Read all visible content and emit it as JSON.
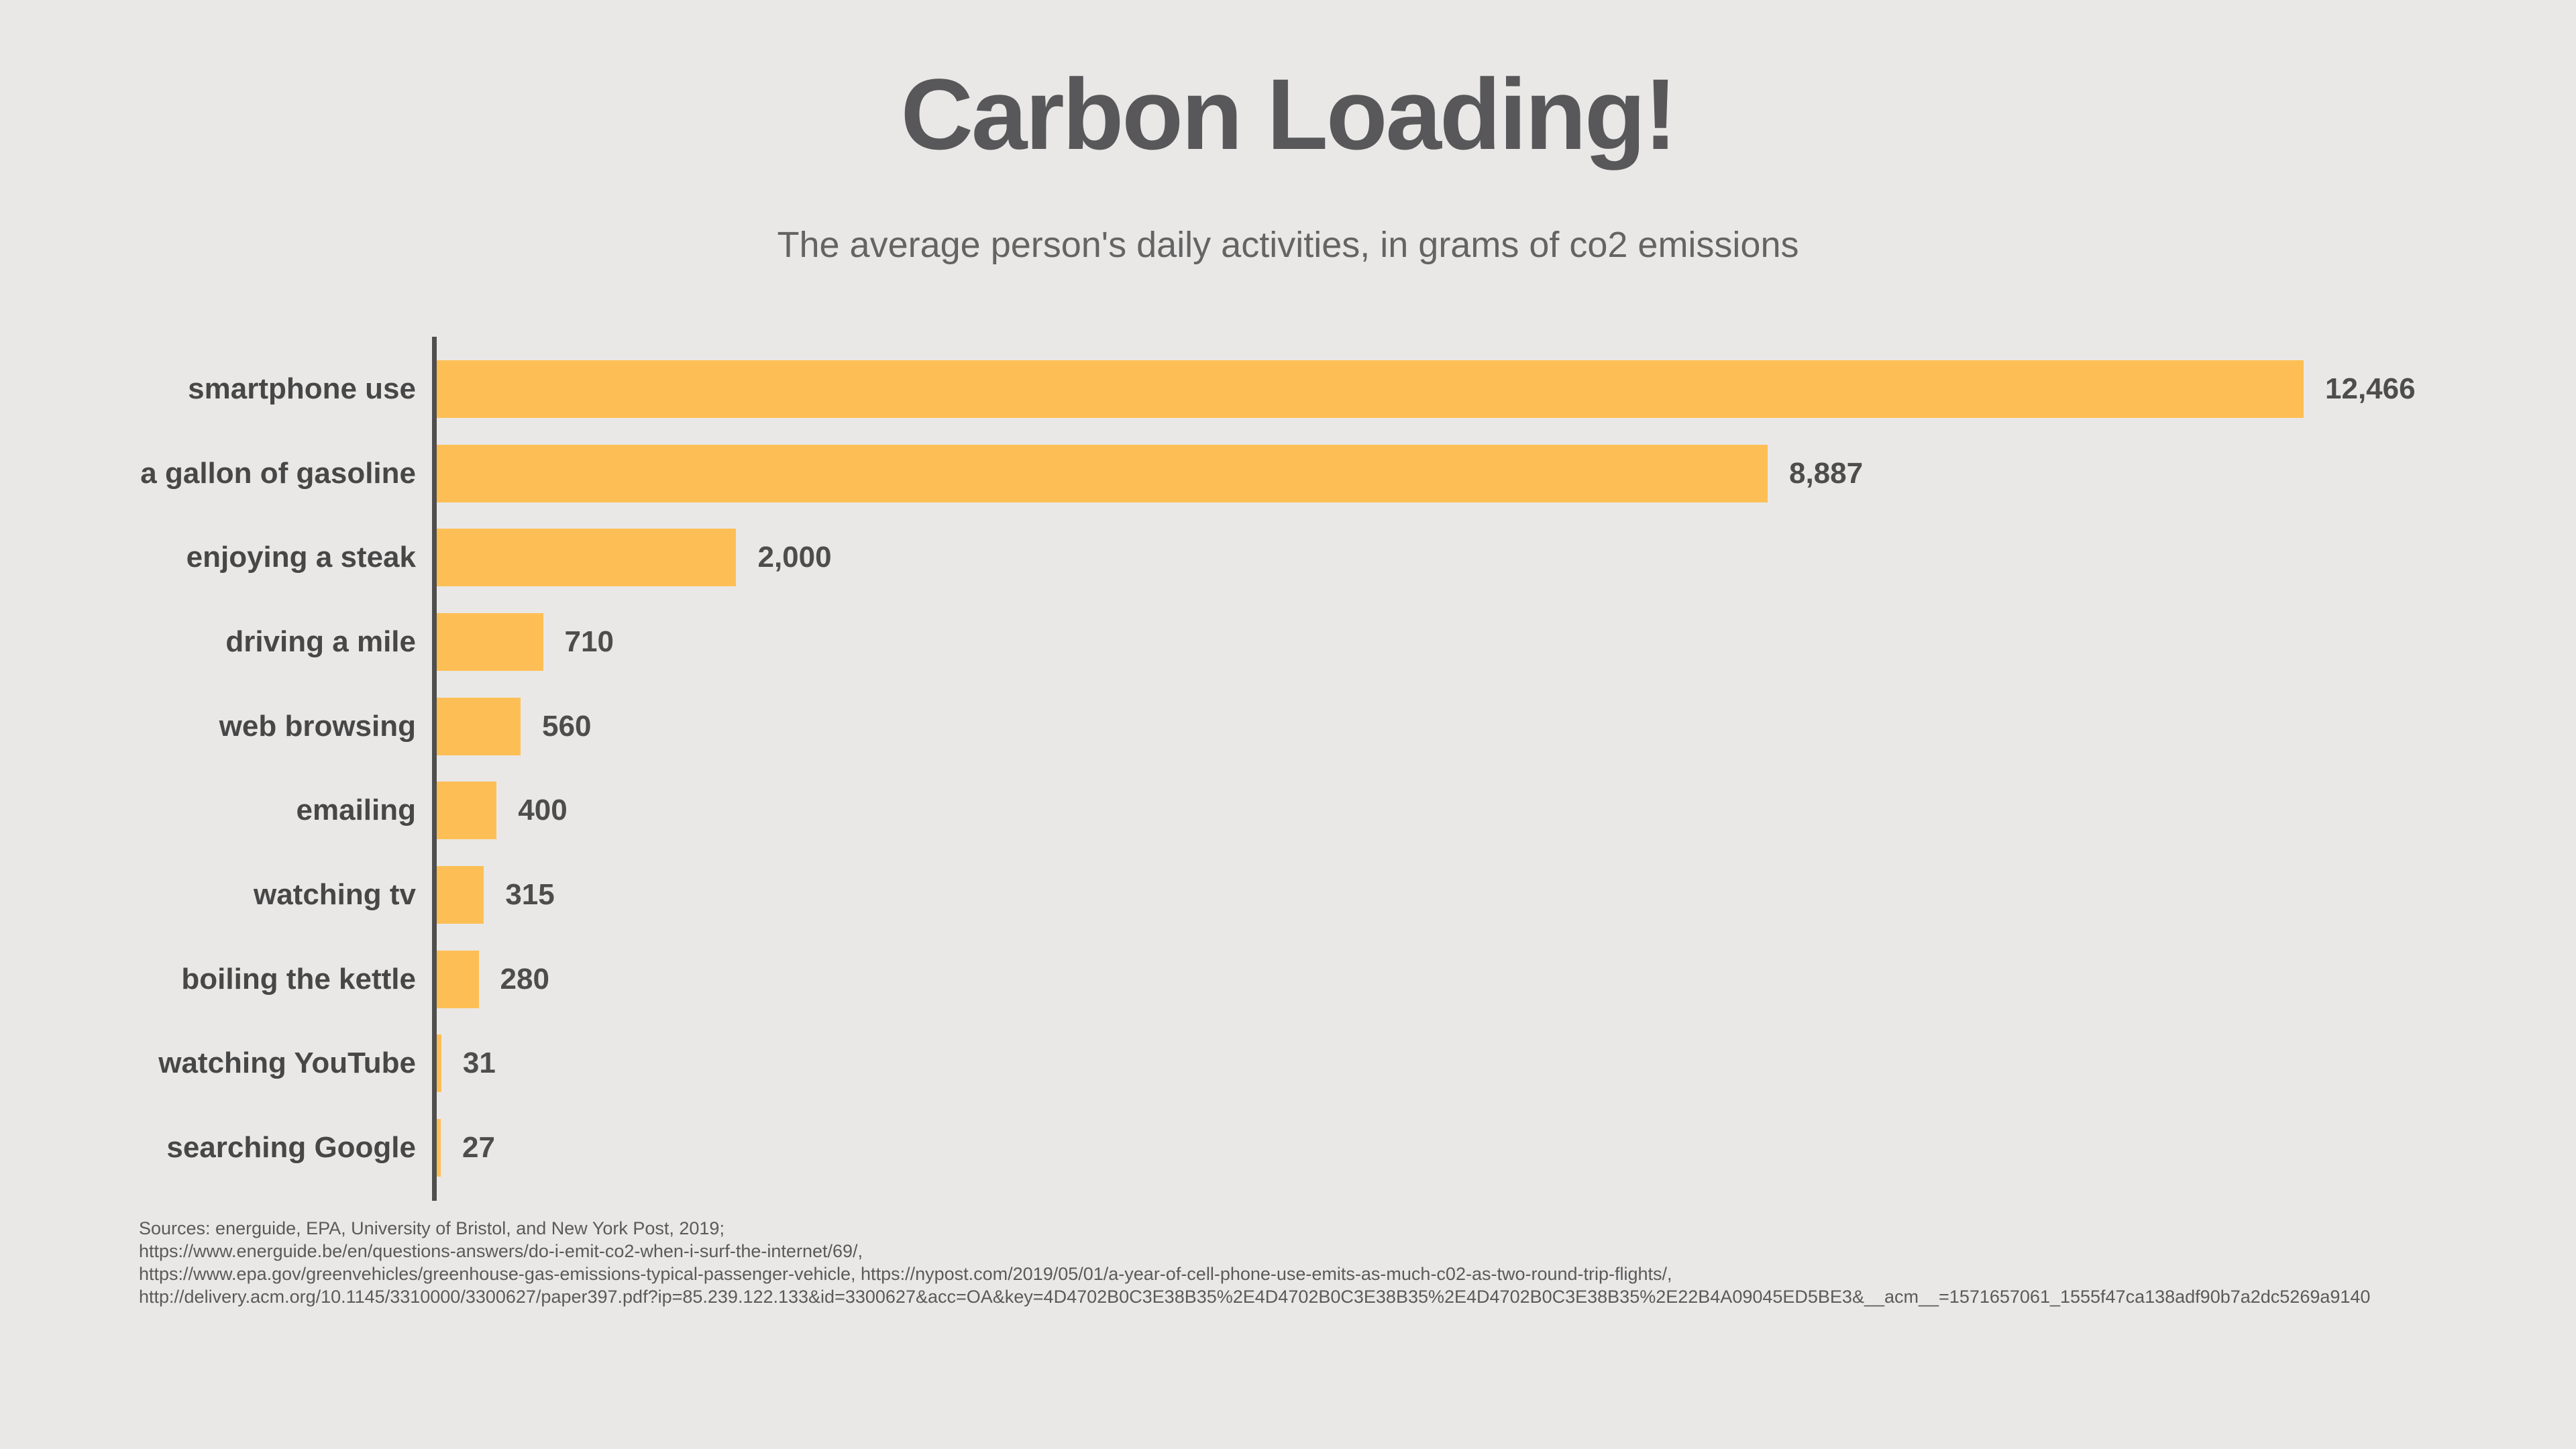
{
  "page": {
    "title": "Carbon Loading!",
    "subtitle": "The average person's daily activities, in grams of co2 emissions"
  },
  "chart_data": {
    "type": "bar",
    "orientation": "horizontal",
    "title": "Carbon Loading!",
    "subtitle": "The average person's daily activities, in grams of co2 emissions",
    "unit": "grams of co2 emissions",
    "categories": [
      "smartphone use",
      "a gallon of gasoline",
      "enjoying a steak",
      "driving a mile",
      "web browsing",
      "emailing",
      "watching tv",
      "boiling the kettle",
      "watching YouTube",
      "searching Google"
    ],
    "values": [
      12466,
      8887,
      2000,
      710,
      560,
      400,
      315,
      280,
      31,
      27
    ],
    "value_labels": [
      "12,466",
      "8,887",
      "2,000",
      "710",
      "560",
      "400",
      "315",
      "280",
      "31",
      "27"
    ],
    "xlim": [
      0,
      12466
    ],
    "grid": false,
    "legend": false,
    "bar_color": "#FDBF55",
    "axis_color": "#4F4E4E",
    "background_color": "#E9E8E7"
  },
  "footnote": {
    "lines": [
      "Sources: energuide, EPA, University of Bristol, and New York Post, 2019;",
      "https://www.energuide.be/en/questions-answers/do-i-emit-co2-when-i-surf-the-internet/69/,",
      "https://www.epa.gov/greenvehicles/greenhouse-gas-emissions-typical-passenger-vehicle, https://nypost.com/2019/05/01/a-year-of-cell-phone-use-emits-as-much-c02-as-two-round-trip-flights/,",
      "http://delivery.acm.org/10.1145/3310000/3300627/paper397.pdf?ip=85.239.122.133&id=3300627&acc=OA&key=4D4702B0C3E38B35%2E4D4702B0C3E38B35%2E4D4702B0C3E38B35%2E22B4A09045ED5BE3&__acm__=1571657061_1555f47ca138adf90b7a2dc5269a9140"
    ]
  },
  "colors": {
    "background": "#E9E8E7",
    "title_text": "#58585A",
    "subtitle_text": "#646464",
    "category_text": "#474747",
    "value_text": "#4D4D4D",
    "footnote_text": "#5A5A5A"
  }
}
